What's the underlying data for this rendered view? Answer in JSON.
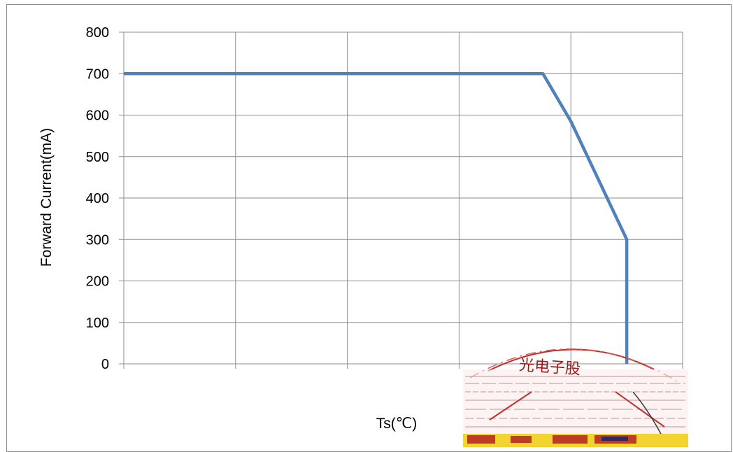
{
  "chart_data": {
    "type": "line",
    "title": "",
    "xlabel": "Ts(℃)",
    "ylabel": "Forward Current(mA)",
    "ylim": [
      0,
      800
    ],
    "yticks": [
      "0",
      "100",
      "200",
      "300",
      "400",
      "500",
      "600",
      "700",
      "800"
    ],
    "x_categories": 5,
    "grid": true,
    "legend": "none",
    "line_color": "#4f81bd",
    "series": [
      {
        "points": [
          {
            "x": 0.0,
            "y": 700
          },
          {
            "x": 3.75,
            "y": 700
          },
          {
            "x": 4.0,
            "y": 585
          },
          {
            "x": 4.5,
            "y": 300
          },
          {
            "x": 4.5,
            "y": 0
          }
        ]
      }
    ]
  },
  "stamp": {
    "visible": true,
    "color": "#cc2222",
    "text_fragment": "光电子股"
  }
}
